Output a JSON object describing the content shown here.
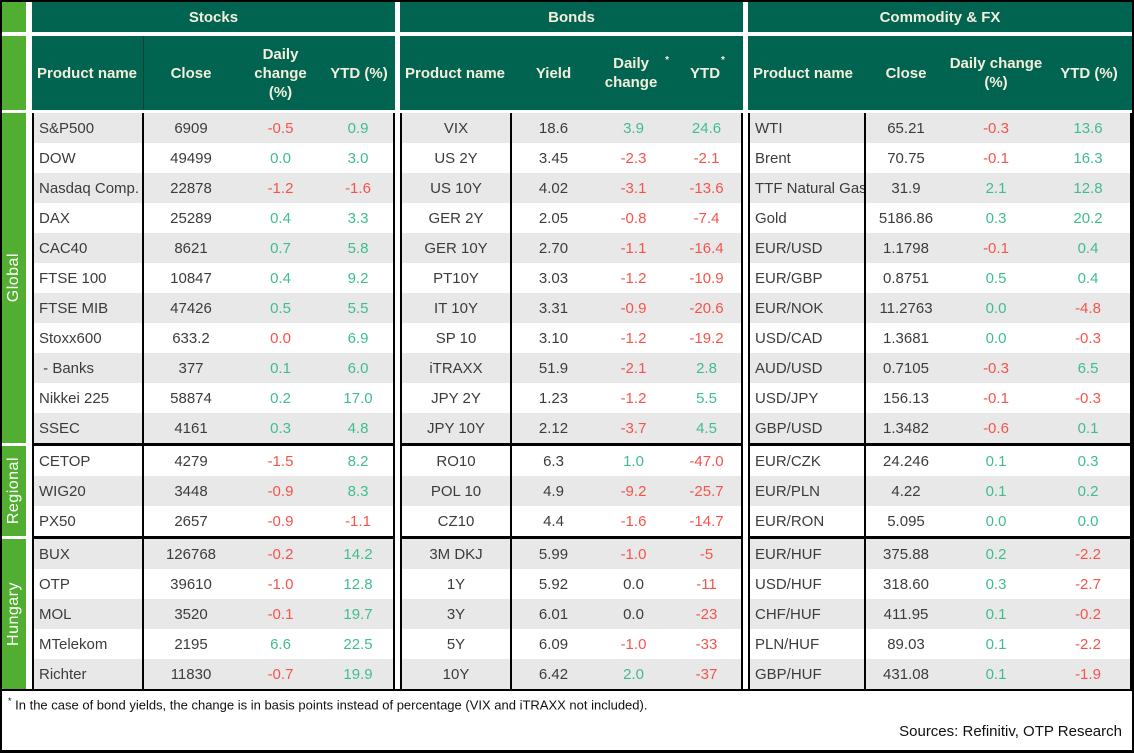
{
  "colors": {
    "dark_green": "#006450",
    "light_green": "#52ae30",
    "header_text": "#f3efdc",
    "positive": "#3fbe8c",
    "negative": "#f4544c",
    "neutral_text": "#3c3c3c",
    "stripe": "#e8e8e8",
    "border": "#000000"
  },
  "row_groups": [
    {
      "label": "Global",
      "rows": 11
    },
    {
      "label": "Regional",
      "rows": 3
    },
    {
      "label": "Hungary",
      "rows": 5
    }
  ],
  "chart_data": [
    {
      "type": "table",
      "title": "Stocks",
      "name_align": "left",
      "columns": [
        {
          "label": "Product name"
        },
        {
          "label": "Close"
        },
        {
          "label": "Daily change (%)"
        },
        {
          "label": "YTD (%)"
        }
      ],
      "rows": [
        {
          "name": "S&P500",
          "value": "6909",
          "change": "-0.5",
          "change_color": "red",
          "ytd": "0.9",
          "ytd_color": "green"
        },
        {
          "name": "DOW",
          "value": "49499",
          "change": "0.0",
          "change_color": "green",
          "ytd": "3.0",
          "ytd_color": "green"
        },
        {
          "name": "Nasdaq Comp.",
          "value": "22878",
          "change": "-1.2",
          "change_color": "red",
          "ytd": "-1.6",
          "ytd_color": "red"
        },
        {
          "name": "DAX",
          "value": "25289",
          "change": "0.4",
          "change_color": "green",
          "ytd": "3.3",
          "ytd_color": "green"
        },
        {
          "name": "CAC40",
          "value": "8621",
          "change": "0.7",
          "change_color": "green",
          "ytd": "5.8",
          "ytd_color": "green"
        },
        {
          "name": "FTSE 100",
          "value": "10847",
          "change": "0.4",
          "change_color": "green",
          "ytd": "9.2",
          "ytd_color": "green"
        },
        {
          "name": "FTSE MIB",
          "value": "47426",
          "change": "0.5",
          "change_color": "green",
          "ytd": "5.5",
          "ytd_color": "green"
        },
        {
          "name": "Stoxx600",
          "value": "633.2",
          "change": "0.0",
          "change_color": "red",
          "ytd": "6.9",
          "ytd_color": "green"
        },
        {
          "name": " - Banks",
          "value": "377",
          "change": "0.1",
          "change_color": "green",
          "ytd": "6.0",
          "ytd_color": "green"
        },
        {
          "name": "Nikkei 225",
          "value": "58874",
          "change": "0.2",
          "change_color": "green",
          "ytd": "17.0",
          "ytd_color": "green"
        },
        {
          "name": "SSEC",
          "value": "4161",
          "change": "0.3",
          "change_color": "green",
          "ytd": "4.8",
          "ytd_color": "green"
        },
        {
          "name": "CETOP",
          "value": "4279",
          "change": "-1.5",
          "change_color": "red",
          "ytd": "8.2",
          "ytd_color": "green"
        },
        {
          "name": "WIG20",
          "value": "3448",
          "change": "-0.9",
          "change_color": "red",
          "ytd": "8.3",
          "ytd_color": "green"
        },
        {
          "name": "PX50",
          "value": "2657",
          "change": "-0.9",
          "change_color": "red",
          "ytd": "-1.1",
          "ytd_color": "red"
        },
        {
          "name": "BUX",
          "value": "126768",
          "change": "-0.2",
          "change_color": "red",
          "ytd": "14.2",
          "ytd_color": "green"
        },
        {
          "name": "OTP",
          "value": "39610",
          "change": "-1.0",
          "change_color": "red",
          "ytd": "12.8",
          "ytd_color": "green"
        },
        {
          "name": "MOL",
          "value": "3520",
          "change": "-0.1",
          "change_color": "red",
          "ytd": "19.7",
          "ytd_color": "green"
        },
        {
          "name": "MTelekom",
          "value": "2195",
          "change": "6.6",
          "change_color": "green",
          "ytd": "22.5",
          "ytd_color": "green"
        },
        {
          "name": "Richter",
          "value": "11830",
          "change": "-0.7",
          "change_color": "red",
          "ytd": "19.9",
          "ytd_color": "green"
        }
      ]
    },
    {
      "type": "table",
      "title": "Bonds",
      "name_align": "center",
      "columns": [
        {
          "label": "Product name"
        },
        {
          "label": "Yield"
        },
        {
          "label": "Daily change",
          "sup": "*"
        },
        {
          "label": "YTD",
          "sup": "*"
        }
      ],
      "rows": [
        {
          "name": "VIX",
          "value": "18.6",
          "change": "3.9",
          "change_color": "green",
          "ytd": "24.6",
          "ytd_color": "green"
        },
        {
          "name": "US 2Y",
          "value": "3.45",
          "change": "-2.3",
          "change_color": "red",
          "ytd": "-2.1",
          "ytd_color": "red"
        },
        {
          "name": "US 10Y",
          "value": "4.02",
          "change": "-3.1",
          "change_color": "red",
          "ytd": "-13.6",
          "ytd_color": "red"
        },
        {
          "name": "GER 2Y",
          "value": "2.05",
          "change": "-0.8",
          "change_color": "red",
          "ytd": "-7.4",
          "ytd_color": "red"
        },
        {
          "name": "GER 10Y",
          "value": "2.70",
          "change": "-1.1",
          "change_color": "red",
          "ytd": "-16.4",
          "ytd_color": "red"
        },
        {
          "name": "PT10Y",
          "value": "3.03",
          "change": "-1.2",
          "change_color": "red",
          "ytd": "-10.9",
          "ytd_color": "red"
        },
        {
          "name": "IT 10Y",
          "value": "3.31",
          "change": "-0.9",
          "change_color": "red",
          "ytd": "-20.6",
          "ytd_color": "red"
        },
        {
          "name": "SP 10",
          "value": "3.10",
          "change": "-1.2",
          "change_color": "red",
          "ytd": "-19.2",
          "ytd_color": "red"
        },
        {
          "name": "iTRAXX",
          "value": "51.9",
          "change": "-2.1",
          "change_color": "red",
          "ytd": "2.8",
          "ytd_color": "green"
        },
        {
          "name": "JPY 2Y",
          "value": "1.23",
          "change": "-1.2",
          "change_color": "red",
          "ytd": "5.5",
          "ytd_color": "green"
        },
        {
          "name": "JPY 10Y",
          "value": "2.12",
          "change": "-3.7",
          "change_color": "red",
          "ytd": "4.5",
          "ytd_color": "green"
        },
        {
          "name": "RO10",
          "value": "6.3",
          "change": "1.0",
          "change_color": "green",
          "ytd": "-47.0",
          "ytd_color": "red"
        },
        {
          "name": "POL 10",
          "value": "4.9",
          "change": "-9.2",
          "change_color": "red",
          "ytd": "-25.7",
          "ytd_color": "red"
        },
        {
          "name": "CZ10",
          "value": "4.4",
          "change": "-1.6",
          "change_color": "red",
          "ytd": "-14.7",
          "ytd_color": "red"
        },
        {
          "name": "3M DKJ",
          "value": "5.99",
          "change": "-1.0",
          "change_color": "red",
          "ytd": "-5",
          "ytd_color": "red"
        },
        {
          "name": "1Y",
          "value": "5.92",
          "change": "0.0",
          "change_color": "dark",
          "ytd": "-11",
          "ytd_color": "red"
        },
        {
          "name": "3Y",
          "value": "6.01",
          "change": "0.0",
          "change_color": "dark",
          "ytd": "-23",
          "ytd_color": "red"
        },
        {
          "name": "5Y",
          "value": "6.09",
          "change": "-1.0",
          "change_color": "red",
          "ytd": "-33",
          "ytd_color": "red"
        },
        {
          "name": "10Y",
          "value": "6.42",
          "change": "2.0",
          "change_color": "green",
          "ytd": "-37",
          "ytd_color": "red"
        }
      ]
    },
    {
      "type": "table",
      "title": "Commodity & FX",
      "name_align": "left",
      "columns": [
        {
          "label": "Product name"
        },
        {
          "label": "Close"
        },
        {
          "label": "Daily change (%)"
        },
        {
          "label": "YTD (%)"
        }
      ],
      "rows": [
        {
          "name": "WTI",
          "value": "65.21",
          "change": "-0.3",
          "change_color": "red",
          "ytd": "13.6",
          "ytd_color": "green"
        },
        {
          "name": "Brent",
          "value": "70.75",
          "change": "-0.1",
          "change_color": "red",
          "ytd": "16.3",
          "ytd_color": "green"
        },
        {
          "name": "TTF Natural Gas",
          "value": "31.9",
          "change": "2.1",
          "change_color": "green",
          "ytd": "12.8",
          "ytd_color": "green"
        },
        {
          "name": "Gold",
          "value": "5186.86",
          "change": "0.3",
          "change_color": "green",
          "ytd": "20.2",
          "ytd_color": "green"
        },
        {
          "name": "EUR/USD",
          "value": "1.1798",
          "change": "-0.1",
          "change_color": "red",
          "ytd": "0.4",
          "ytd_color": "green"
        },
        {
          "name": "EUR/GBP",
          "value": "0.8751",
          "change": "0.5",
          "change_color": "green",
          "ytd": "0.4",
          "ytd_color": "green"
        },
        {
          "name": "EUR/NOK",
          "value": "11.2763",
          "change": "0.0",
          "change_color": "green",
          "ytd": "-4.8",
          "ytd_color": "red"
        },
        {
          "name": "USD/CAD",
          "value": "1.3681",
          "change": "0.0",
          "change_color": "green",
          "ytd": "-0.3",
          "ytd_color": "red"
        },
        {
          "name": "AUD/USD",
          "value": "0.7105",
          "change": "-0.3",
          "change_color": "red",
          "ytd": "6.5",
          "ytd_color": "green"
        },
        {
          "name": "USD/JPY",
          "value": "156.13",
          "change": "-0.1",
          "change_color": "red",
          "ytd": "-0.3",
          "ytd_color": "red"
        },
        {
          "name": "GBP/USD",
          "value": "1.3482",
          "change": "-0.6",
          "change_color": "red",
          "ytd": "0.1",
          "ytd_color": "green"
        },
        {
          "name": "EUR/CZK",
          "value": "24.246",
          "change": "0.1",
          "change_color": "green",
          "ytd": "0.3",
          "ytd_color": "green"
        },
        {
          "name": "EUR/PLN",
          "value": "4.22",
          "change": "0.1",
          "change_color": "green",
          "ytd": "0.2",
          "ytd_color": "green"
        },
        {
          "name": "EUR/RON",
          "value": "5.095",
          "change": "0.0",
          "change_color": "green",
          "ytd": "0.0",
          "ytd_color": "green"
        },
        {
          "name": "EUR/HUF",
          "value": "375.88",
          "change": "0.2",
          "change_color": "green",
          "ytd": "-2.2",
          "ytd_color": "red"
        },
        {
          "name": "USD/HUF",
          "value": "318.60",
          "change": "0.3",
          "change_color": "green",
          "ytd": "-2.7",
          "ytd_color": "red"
        },
        {
          "name": "CHF/HUF",
          "value": "411.95",
          "change": "0.1",
          "change_color": "green",
          "ytd": "-0.2",
          "ytd_color": "red"
        },
        {
          "name": "PLN/HUF",
          "value": "89.03",
          "change": "0.1",
          "change_color": "green",
          "ytd": "-2.2",
          "ytd_color": "red"
        },
        {
          "name": "GBP/HUF",
          "value": "431.08",
          "change": "0.1",
          "change_color": "green",
          "ytd": "-1.9",
          "ytd_color": "red"
        }
      ]
    }
  ],
  "footnote": {
    "star": "*",
    "text": " In the case of bond yields, the change is in basis points instead of percentage (VIX and iTRAXX not included)."
  },
  "sources": "Sources: Refinitiv, OTP Research"
}
